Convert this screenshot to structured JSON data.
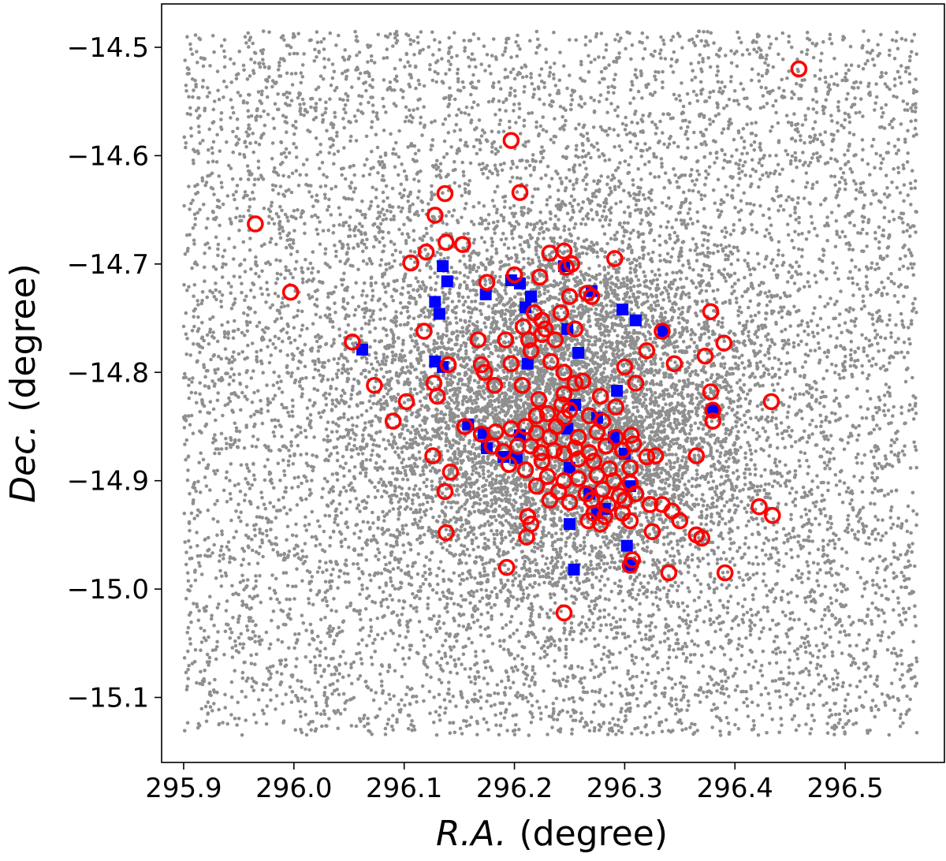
{
  "chart_data": {
    "type": "scatter",
    "xlabel_symbol": "R.A.",
    "xlabel_unit": "(degree)",
    "ylabel_symbol": "Dec.",
    "ylabel_unit": "(degree)",
    "xlim": [
      295.88,
      296.59
    ],
    "ylim": [
      -15.16,
      -14.46
    ],
    "xticks": [
      295.9,
      296.0,
      296.1,
      296.2,
      296.3,
      296.4,
      296.5
    ],
    "xtick_labels": [
      "295.9",
      "296.0",
      "296.1",
      "296.2",
      "296.3",
      "296.4",
      "296.5"
    ],
    "yticks": [
      -14.5,
      -14.6,
      -14.7,
      -14.8,
      -14.9,
      -15.0,
      -15.1
    ],
    "ytick_labels": [
      "−14.5",
      "−14.6",
      "−14.7",
      "−14.8",
      "−14.9",
      "−15.0",
      "−15.1"
    ],
    "grid": false,
    "legend": "none",
    "series": [
      {
        "marker": "small-dot",
        "color": "#8f8f8f",
        "field": {
          "ra_range": [
            295.9,
            296.565
          ],
          "dec_range": [
            -15.135,
            -14.485
          ],
          "count_uniform": 8500,
          "count_cluster": 6500,
          "cluster_center": [
            296.245,
            -14.84
          ],
          "cluster_sigma": [
            0.09,
            0.085
          ]
        }
      },
      {
        "marker": "filled-square",
        "color": "#0000ff",
        "points": [
          [
            296.135,
            -14.702
          ],
          [
            296.139,
            -14.716
          ],
          [
            296.128,
            -14.735
          ],
          [
            296.132,
            -14.746
          ],
          [
            296.128,
            -14.79
          ],
          [
            296.135,
            -14.795
          ],
          [
            296.062,
            -14.779
          ],
          [
            296.174,
            -14.728
          ],
          [
            296.197,
            -14.715
          ],
          [
            296.205,
            -14.718
          ],
          [
            296.21,
            -14.74
          ],
          [
            296.215,
            -14.73
          ],
          [
            296.245,
            -14.702
          ],
          [
            296.27,
            -14.725
          ],
          [
            296.298,
            -14.742
          ],
          [
            296.31,
            -14.752
          ],
          [
            296.335,
            -14.762
          ],
          [
            296.258,
            -14.782
          ],
          [
            296.248,
            -14.76
          ],
          [
            296.293,
            -14.817
          ],
          [
            296.255,
            -14.83
          ],
          [
            296.248,
            -14.852
          ],
          [
            296.175,
            -14.87
          ],
          [
            296.172,
            -14.856
          ],
          [
            296.158,
            -14.848
          ],
          [
            296.205,
            -14.858
          ],
          [
            296.25,
            -14.888
          ],
          [
            296.268,
            -14.912
          ],
          [
            296.275,
            -14.93
          ],
          [
            296.282,
            -14.926
          ],
          [
            296.302,
            -14.96
          ],
          [
            296.305,
            -14.978
          ],
          [
            296.25,
            -14.94
          ],
          [
            296.254,
            -14.982
          ],
          [
            296.38,
            -14.835
          ],
          [
            296.29,
            -14.86
          ],
          [
            296.3,
            -14.875
          ],
          [
            296.202,
            -14.879
          ],
          [
            296.19,
            -14.878
          ],
          [
            296.212,
            -14.792
          ],
          [
            296.275,
            -14.842
          ],
          [
            296.305,
            -14.905
          ]
        ]
      },
      {
        "marker": "open-circle",
        "color": "#ff0000",
        "points": [
          [
            296.458,
            -14.52
          ],
          [
            296.197,
            -14.586
          ],
          [
            296.205,
            -14.634
          ],
          [
            296.137,
            -14.635
          ],
          [
            296.128,
            -14.655
          ],
          [
            295.965,
            -14.663
          ],
          [
            296.138,
            -14.68
          ],
          [
            296.153,
            -14.682
          ],
          [
            296.12,
            -14.689
          ],
          [
            296.106,
            -14.699
          ],
          [
            296.232,
            -14.69
          ],
          [
            296.245,
            -14.688
          ],
          [
            296.291,
            -14.695
          ],
          [
            295.997,
            -14.726
          ],
          [
            296.175,
            -14.717
          ],
          [
            296.2,
            -14.71
          ],
          [
            296.223,
            -14.712
          ],
          [
            296.247,
            -14.703
          ],
          [
            296.252,
            -14.7
          ],
          [
            296.266,
            -14.727
          ],
          [
            296.27,
            -14.73
          ],
          [
            296.378,
            -14.744
          ],
          [
            296.118,
            -14.762
          ],
          [
            296.334,
            -14.762
          ],
          [
            296.053,
            -14.772
          ],
          [
            296.39,
            -14.773
          ],
          [
            296.167,
            -14.77
          ],
          [
            296.192,
            -14.77
          ],
          [
            296.208,
            -14.758
          ],
          [
            296.225,
            -14.752
          ],
          [
            296.242,
            -14.745
          ],
          [
            296.25,
            -14.73
          ],
          [
            296.237,
            -14.77
          ],
          [
            296.255,
            -14.76
          ],
          [
            296.215,
            -14.78
          ],
          [
            296.197,
            -14.792
          ],
          [
            296.233,
            -14.79
          ],
          [
            296.32,
            -14.78
          ],
          [
            296.14,
            -14.793
          ],
          [
            296.17,
            -14.793
          ],
          [
            296.173,
            -14.8
          ],
          [
            296.3,
            -14.795
          ],
          [
            296.345,
            -14.792
          ],
          [
            296.373,
            -14.785
          ],
          [
            296.073,
            -14.812
          ],
          [
            296.127,
            -14.81
          ],
          [
            296.182,
            -14.812
          ],
          [
            296.207,
            -14.812
          ],
          [
            296.222,
            -14.825
          ],
          [
            296.245,
            -14.8
          ],
          [
            296.255,
            -14.81
          ],
          [
            296.262,
            -14.808
          ],
          [
            296.31,
            -14.81
          ],
          [
            296.378,
            -14.818
          ],
          [
            296.433,
            -14.827
          ],
          [
            296.102,
            -14.827
          ],
          [
            296.13,
            -14.822
          ],
          [
            296.243,
            -14.83
          ],
          [
            296.278,
            -14.822
          ],
          [
            296.292,
            -14.832
          ],
          [
            296.38,
            -14.835
          ],
          [
            296.09,
            -14.845
          ],
          [
            296.23,
            -14.838
          ],
          [
            296.245,
            -14.842
          ],
          [
            296.268,
            -14.84
          ],
          [
            296.28,
            -14.845
          ],
          [
            296.38,
            -14.845
          ],
          [
            296.155,
            -14.85
          ],
          [
            296.17,
            -14.857
          ],
          [
            296.183,
            -14.855
          ],
          [
            296.197,
            -14.852
          ],
          [
            296.21,
            -14.85
          ],
          [
            296.22,
            -14.856
          ],
          [
            296.232,
            -14.86
          ],
          [
            296.258,
            -14.86
          ],
          [
            296.275,
            -14.855
          ],
          [
            296.292,
            -14.86
          ],
          [
            296.306,
            -14.858
          ],
          [
            296.18,
            -14.868
          ],
          [
            296.19,
            -14.873
          ],
          [
            296.203,
            -14.868
          ],
          [
            296.215,
            -14.868
          ],
          [
            296.224,
            -14.874
          ],
          [
            296.236,
            -14.872
          ],
          [
            296.245,
            -14.875
          ],
          [
            296.255,
            -14.87
          ],
          [
            296.268,
            -14.874
          ],
          [
            296.283,
            -14.868
          ],
          [
            296.298,
            -14.872
          ],
          [
            296.308,
            -14.866
          ],
          [
            296.126,
            -14.877
          ],
          [
            296.32,
            -14.878
          ],
          [
            296.328,
            -14.877
          ],
          [
            296.365,
            -14.877
          ],
          [
            296.195,
            -14.885
          ],
          [
            296.225,
            -14.882
          ],
          [
            296.258,
            -14.88
          ],
          [
            296.272,
            -14.882
          ],
          [
            296.286,
            -14.889
          ],
          [
            296.305,
            -14.888
          ],
          [
            296.142,
            -14.892
          ],
          [
            296.21,
            -14.89
          ],
          [
            296.23,
            -14.896
          ],
          [
            296.245,
            -14.9
          ],
          [
            296.258,
            -14.898
          ],
          [
            296.275,
            -14.895
          ],
          [
            296.29,
            -14.9
          ],
          [
            296.305,
            -14.902
          ],
          [
            296.22,
            -14.905
          ],
          [
            296.24,
            -14.91
          ],
          [
            296.265,
            -14.912
          ],
          [
            296.28,
            -14.908
          ],
          [
            296.295,
            -14.914
          ],
          [
            296.31,
            -14.912
          ],
          [
            296.137,
            -14.91
          ],
          [
            296.232,
            -14.918
          ],
          [
            296.25,
            -14.92
          ],
          [
            296.27,
            -14.918
          ],
          [
            296.285,
            -14.922
          ],
          [
            296.3,
            -14.918
          ],
          [
            296.323,
            -14.922
          ],
          [
            296.334,
            -14.922
          ],
          [
            296.422,
            -14.924
          ],
          [
            296.434,
            -14.932
          ],
          [
            296.272,
            -14.93
          ],
          [
            296.282,
            -14.933
          ],
          [
            296.298,
            -14.93
          ],
          [
            296.343,
            -14.928
          ],
          [
            296.305,
            -14.937
          ],
          [
            296.35,
            -14.937
          ],
          [
            296.212,
            -14.933
          ],
          [
            296.215,
            -14.94
          ],
          [
            296.267,
            -14.937
          ],
          [
            296.278,
            -14.94
          ],
          [
            296.138,
            -14.948
          ],
          [
            296.211,
            -14.952
          ],
          [
            296.325,
            -14.947
          ],
          [
            296.365,
            -14.95
          ],
          [
            296.37,
            -14.953
          ],
          [
            296.307,
            -14.973
          ],
          [
            296.305,
            -14.978
          ],
          [
            296.193,
            -14.98
          ],
          [
            296.34,
            -14.985
          ],
          [
            296.391,
            -14.985
          ],
          [
            296.245,
            -15.022
          ],
          [
            296.213,
            -14.77
          ],
          [
            296.225,
            -14.765
          ],
          [
            296.22,
            -14.84
          ],
          [
            296.238,
            -14.85
          ],
          [
            296.245,
            -14.82
          ],
          [
            296.25,
            -14.835
          ],
          [
            296.228,
            -14.76
          ],
          [
            296.218,
            -14.745
          ]
        ]
      }
    ]
  }
}
